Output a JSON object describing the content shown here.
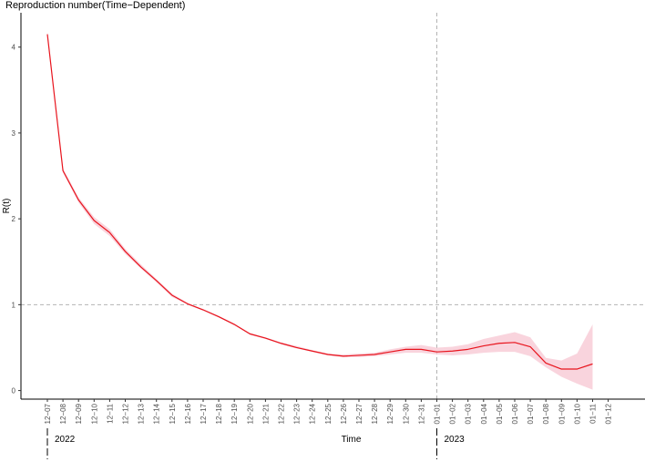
{
  "chart_data": {
    "type": "line",
    "title": "Reproduction number(Time−Dependent)",
    "xlabel": "Time",
    "ylabel": "R(t)",
    "ylim": [
      -0.1,
      4.4
    ],
    "y_ticks": [
      "0",
      "1",
      "2",
      "3",
      "4"
    ],
    "x_tick_labels": [
      "12−07",
      "12−08",
      "12−09",
      "12−10",
      "12−11",
      "12−12",
      "12−13",
      "12−14",
      "12−15",
      "12−16",
      "12−17",
      "12−18",
      "12−19",
      "12−20",
      "12−21",
      "12−22",
      "12−23",
      "12−24",
      "12−25",
      "12−26",
      "12−27",
      "12−28",
      "12−29",
      "12−30",
      "12−31",
      "01−01",
      "01−02",
      "01−03",
      "01−04",
      "01−05",
      "01−06",
      "01−07",
      "01−08",
      "01−09",
      "01−10",
      "01−11",
      "01−12"
    ],
    "year_labels": [
      "2022",
      "2023"
    ],
    "grid": false,
    "reference_lines": {
      "hline_y": 1,
      "vline_x": "01−01"
    },
    "colors": {
      "line": "#e8141d",
      "ribbon": "#f7c6d1",
      "ref_line": "#b3b3b3",
      "axis": "#000000"
    },
    "series": [
      {
        "values": [
          4.15,
          2.56,
          2.22,
          1.98,
          1.84,
          1.62,
          1.44,
          1.28,
          1.11,
          1.01,
          0.94,
          0.86,
          0.77,
          0.66,
          0.61,
          0.55,
          0.5,
          0.46,
          0.42,
          0.4,
          0.41,
          0.42,
          0.45,
          0.48,
          0.48,
          0.45,
          0.46,
          0.48,
          0.52,
          0.55,
          0.56,
          0.51,
          0.32,
          0.25,
          0.25,
          0.31,
          null
        ],
        "lower": [
          4.13,
          2.54,
          2.19,
          1.94,
          1.8,
          1.59,
          1.42,
          1.26,
          1.09,
          1.0,
          0.93,
          0.85,
          0.76,
          0.65,
          0.6,
          0.54,
          0.49,
          0.45,
          0.41,
          0.39,
          0.39,
          0.4,
          0.42,
          0.44,
          0.44,
          0.42,
          0.41,
          0.42,
          0.44,
          0.45,
          0.45,
          0.4,
          0.27,
          0.16,
          0.08,
          0.01,
          null
        ],
        "upper": [
          4.17,
          2.59,
          2.25,
          2.02,
          1.88,
          1.65,
          1.47,
          1.3,
          1.13,
          1.02,
          0.95,
          0.87,
          0.78,
          0.67,
          0.62,
          0.56,
          0.52,
          0.47,
          0.43,
          0.42,
          0.43,
          0.44,
          0.48,
          0.51,
          0.53,
          0.5,
          0.51,
          0.54,
          0.6,
          0.64,
          0.68,
          0.62,
          0.38,
          0.35,
          0.43,
          0.77,
          null
        ]
      }
    ]
  }
}
